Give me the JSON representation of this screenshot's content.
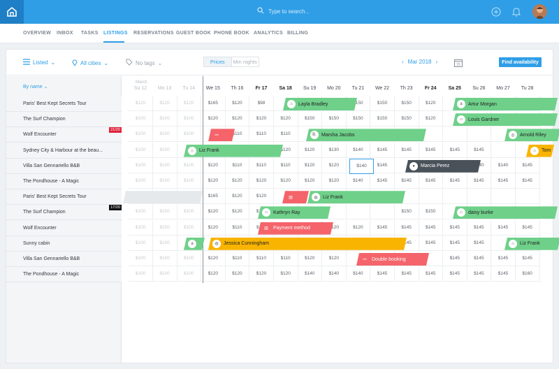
{
  "search": {
    "placeholder": "Type to search..."
  },
  "nav": [
    "OVERVIEW",
    "INBOX",
    "TASKS",
    "LISTINGS",
    "RESERVATIONS",
    "GUEST BOOK",
    "PHONE BOOK",
    "ANALYTICS",
    "BILLING"
  ],
  "toolbar": {
    "listed": "Listed",
    "cities": "All cities",
    "tags": "No tags",
    "prices": "Prices",
    "min_nights": "Min nights",
    "month": "Mar 2018",
    "find": "Find availability",
    "cal_day": "15"
  },
  "sort": "By name",
  "month_label": "March",
  "days": [
    "Su 12",
    "Mo 13",
    "Tu 14",
    "We 15",
    "Th 16",
    "Fr 17",
    "Sa 18",
    "Su 19",
    "Mo 20",
    "Tu 21",
    "We 22",
    "Th 23",
    "Fr 24",
    "Sa 25",
    "Su 26",
    "Mo 27",
    "Tu 28"
  ],
  "listings": [
    {
      "name": "Paris' Best Kept Secrets Tour"
    },
    {
      "name": "The Surf Champion"
    },
    {
      "name": "Wolf Encounter",
      "badge": "21/20"
    },
    {
      "name": "Sydney City & Harbour at the beau..."
    },
    {
      "name": "Villa San Gennariello B&B"
    },
    {
      "name": "The Pondhouse - A Magic"
    },
    {
      "name": "Paris' Best Kept Secrets Tour"
    },
    {
      "name": "The Surf Champion",
      "badge": "17/20"
    },
    {
      "name": "Wolf Encounter"
    },
    {
      "name": "Sunny cabin"
    },
    {
      "name": "Villa San Gennariello B&B"
    },
    {
      "name": "The Pondhouse - A Magic"
    }
  ],
  "prices": [
    [
      "$120",
      "$120",
      "$120",
      "$165",
      "$120",
      "$98",
      "",
      "",
      "$150",
      "$150",
      "$150",
      "$150",
      "$120",
      "",
      "",
      "",
      ""
    ],
    [
      "$100",
      "$100",
      "$100",
      "$120",
      "$120",
      "$120",
      "$120",
      "$150",
      "$150",
      "$150",
      "$150",
      "$150",
      "$120",
      "",
      "",
      "",
      ""
    ],
    [
      "$100",
      "$100",
      "$100",
      "",
      "$110",
      "$110",
      "$110",
      "",
      "",
      "",
      "",
      "",
      "",
      "",
      "",
      "",
      ""
    ],
    [
      "$100",
      "$100",
      "",
      "",
      "",
      "",
      "$120",
      "$120",
      "$130",
      "$140",
      "$145",
      "$145",
      "$145",
      "$145",
      "$145",
      "",
      ""
    ],
    [
      "$100",
      "$100",
      "$100",
      "$120",
      "$110",
      "$110",
      "$110",
      "$120",
      "$120",
      "",
      "$145",
      "",
      "",
      "$140",
      "$140",
      "$140",
      "$145"
    ],
    [
      "$100",
      "$100",
      "$100",
      "$120",
      "$120",
      "$120",
      "$120",
      "$120",
      "$120",
      "$140",
      "$145",
      "$145",
      "$145",
      "$145",
      "$145",
      "$145",
      "$145"
    ],
    [
      "",
      "",
      "",
      "$165",
      "$120",
      "$120",
      "",
      "",
      "",
      "",
      "",
      "",
      "",
      "",
      "",
      "",
      ""
    ],
    [
      "$100",
      "$100",
      "$100",
      "$120",
      "$120",
      "$120",
      "",
      "",
      "",
      "",
      "",
      "$150",
      "$150",
      "",
      "",
      "",
      ""
    ],
    [
      "$100",
      "$100",
      "$100",
      "$120",
      "$110",
      "$110",
      "",
      "",
      "$120",
      "$120",
      "$145",
      "$145",
      "$145",
      "$145",
      "$145",
      "$145",
      "$145"
    ],
    [
      "$100",
      "$100",
      "",
      "",
      "",
      "",
      "",
      "",
      "",
      "",
      "",
      "$145",
      "$145",
      "$145",
      "$145",
      "",
      ""
    ],
    [
      "$100",
      "$100",
      "$100",
      "$120",
      "$110",
      "$110",
      "$110",
      "$120",
      "$120",
      "",
      "",
      "",
      "",
      "$145",
      "$145",
      "$145",
      "$145"
    ],
    [
      "$100",
      "$100",
      "$100",
      "$120",
      "$120",
      "$120",
      "$120",
      "$140",
      "$140",
      "$140",
      "$145",
      "$145",
      "$145",
      "$145",
      "$145",
      "$145",
      "$160"
    ]
  ],
  "selected_price": "$140",
  "bookings": [
    {
      "label": "Layla Bradley",
      "icon": "airbnb-icon",
      "color": "green",
      "row": 0
    },
    {
      "label": "Artur Morgan",
      "icon": "amazon-icon",
      "color": "green",
      "row": 0
    },
    {
      "label": "Louis Gardner",
      "icon": "home-icon",
      "color": "green",
      "row": 1
    },
    {
      "label": "",
      "icon": "link-icon",
      "color": "red",
      "row": 2
    },
    {
      "label": "Marsha Jacobs",
      "icon": "booking-icon",
      "color": "green",
      "row": 2
    },
    {
      "label": "Arnold Riley",
      "icon": "tripadvisor-icon",
      "color": "green",
      "row": 2
    },
    {
      "label": "Liz Frank",
      "icon": "home-icon",
      "color": "green",
      "row": 3
    },
    {
      "label": "Tom",
      "icon": "airbnb-icon",
      "color": "orange",
      "row": 3
    },
    {
      "label": "Marcia Perez",
      "icon": "avatar",
      "color": "dark",
      "row": 4
    },
    {
      "label": "",
      "icon": "building-icon",
      "color": "red",
      "row": 6
    },
    {
      "label": "Liz Frank",
      "icon": "globe-icon",
      "color": "green",
      "row": 6
    },
    {
      "label": "Kathryn Ray",
      "icon": "airbnb-icon",
      "color": "green",
      "row": 7
    },
    {
      "label": "daisy burke",
      "icon": "airbnb-icon",
      "color": "green",
      "row": 7
    },
    {
      "label": "Payment method",
      "icon": "building-icon",
      "color": "red",
      "row": 8
    },
    {
      "label": "",
      "icon": "amazon-icon",
      "color": "green",
      "row": 9
    },
    {
      "label": "Jessica Cunningham",
      "icon": "globe-icon",
      "color": "orange",
      "row": 9
    },
    {
      "label": "Liz Frank",
      "icon": "home-icon",
      "color": "green",
      "row": 9
    },
    {
      "label": "Double booking",
      "icon": "link-icon",
      "color": "red",
      "row": 10
    }
  ],
  "colors": {
    "accent": "#2f9ee6",
    "green": "#6fd08a",
    "red": "#f4646a",
    "orange": "#f8b400",
    "dark": "#4a5259"
  }
}
